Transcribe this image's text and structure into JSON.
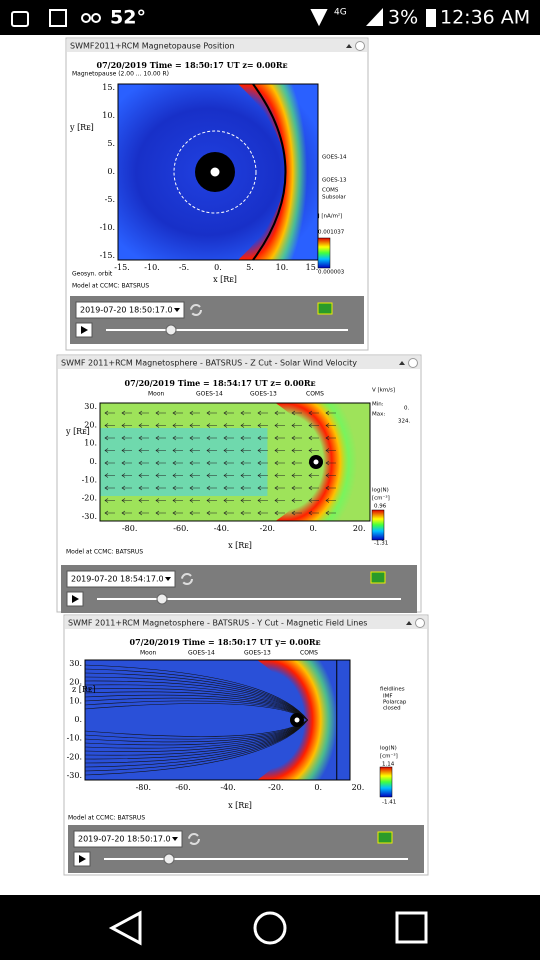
{
  "status_bar": {
    "temperature": "52°",
    "network": "4G",
    "battery": "3%",
    "time": "12:36 AM"
  },
  "panels": [
    {
      "title": "SWMF2011+RCM Magnetopause Position",
      "plot_title": "07/20/2019 Time = 18:50:17 UT z= 0.00Rᴇ",
      "legend": [
        "Magnetopause (2.00 ... 10.00 R)"
      ],
      "y_label": "y [Rᴇ]",
      "yticks": [
        "15.",
        "10.",
        "5.",
        "0.",
        "-5.",
        "-10.",
        "-15."
      ],
      "x_label": "x [Rᴇ]",
      "xticks": [
        "-15.",
        "-10.",
        "-5.",
        "0.",
        "5.",
        "10.",
        "15."
      ],
      "side_labels": [
        "GOES-14",
        "GOES-13",
        "COMS",
        "Subsolar",
        "J [nA/m²]",
        "0.001037",
        "0.000003"
      ],
      "notes": [
        "Geosyn. orbit",
        "Model at CCMC: BATSRUS"
      ],
      "timestamp": "2019-07-20 18:50:17.0"
    },
    {
      "title": "SWMF 2011+RCM Magnetosphere - BATSRUS - Z Cut - Solar Wind Velocity",
      "plot_title": "07/20/2019 Time = 18:54:17 UT z= 0.00Rᴇ",
      "legend": [
        "Moon",
        "GOES-14",
        "GOES-13",
        "COMS"
      ],
      "y_label": "y [Rᴇ]",
      "yticks": [
        "30.",
        "20.",
        "10.",
        "0.",
        "-10.",
        "-20.",
        "-30."
      ],
      "x_label": "x [Rᴇ]",
      "xticks": [
        "-80.",
        "-60.",
        "-40.",
        "-20.",
        "0.",
        "20."
      ],
      "side_labels": [
        "V [km/s]",
        "Min:",
        "0.",
        "Max:",
        "324.",
        "log(N)",
        "[cm⁻³]",
        "0.96",
        "-1.31"
      ],
      "notes": [
        "Model at CCMC: BATSRUS"
      ],
      "timestamp": "2019-07-20 18:54:17.0"
    },
    {
      "title": "SWMF 2011+RCM Magnetosphere - BATSRUS - Y Cut - Magnetic Field Lines",
      "plot_title": "07/20/2019 Time = 18:50:17 UT y= 0.00Rᴇ",
      "legend": [
        "Moon",
        "GOES-14",
        "GOES-13",
        "COMS"
      ],
      "y_label": "z [Rᴇ]",
      "yticks": [
        "30.",
        "20.",
        "10.",
        "0.",
        "-10.",
        "-20.",
        "-30."
      ],
      "x_label": "x [Rᴇ]",
      "xticks": [
        "-80.",
        "-60.",
        "-40.",
        "-20.",
        "0.",
        "20."
      ],
      "side_labels": [
        "fieldlines",
        "IMF",
        "Polarcap",
        "closed",
        "log(N)",
        "[cm⁻³]",
        "1.14",
        "-1.41"
      ],
      "notes": [
        "Model at CCMC: BATSRUS"
      ],
      "timestamp": "2019-07-20 18:50:17.0"
    }
  ]
}
